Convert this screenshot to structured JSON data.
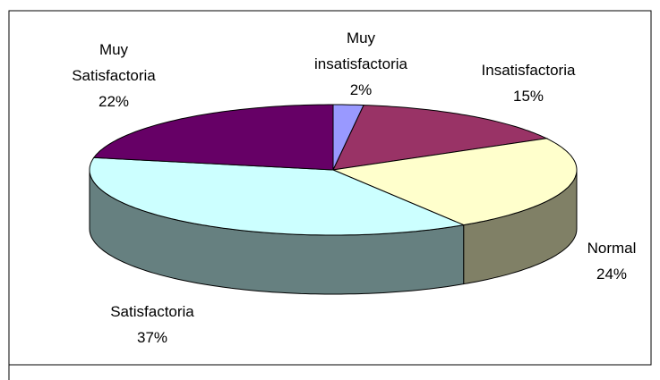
{
  "chart_data": {
    "type": "pie3d",
    "categories": [
      "Muy insatisfactoria",
      "Insatisfactoria",
      "Normal",
      "Satisfactoria",
      "Muy Satisfactoria"
    ],
    "values": [
      2,
      15,
      24,
      37,
      22
    ],
    "value_labels": [
      "2%",
      "15%",
      "24%",
      "37%",
      "22%"
    ],
    "colors": [
      "#9999ff",
      "#993366",
      "#ffffcc",
      "#ccffff",
      "#660066"
    ]
  }
}
